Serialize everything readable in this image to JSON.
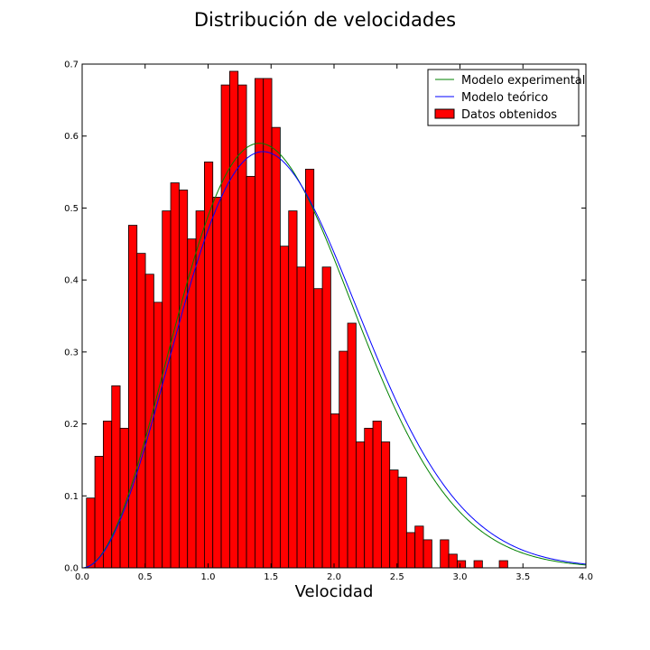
{
  "chart_data": {
    "type": "bar",
    "title": "Distribución de velocidades",
    "xlabel": "Velocidad",
    "ylabel": "",
    "xlim": [
      0.0,
      4.0
    ],
    "ylim": [
      0.0,
      0.7
    ],
    "xticks": [
      "0.0",
      "0.5",
      "1.0",
      "1.5",
      "2.0",
      "2.5",
      "3.0",
      "3.5",
      "4.0"
    ],
    "yticks": [
      "0.0",
      "0.1",
      "0.2",
      "0.3",
      "0.4",
      "0.5",
      "0.6",
      "0.7"
    ],
    "grid": false,
    "legend_position": "top-right",
    "histogram": {
      "name": "Datos obtenidos",
      "color": "#ff0000",
      "bin_start": 0.034,
      "bin_width": 0.0669,
      "values": [
        0.097,
        0.155,
        0.204,
        0.253,
        0.194,
        0.476,
        0.437,
        0.408,
        0.369,
        0.496,
        0.535,
        0.525,
        0.457,
        0.496,
        0.564,
        0.515,
        0.671,
        0.69,
        0.671,
        0.544,
        0.68,
        0.68,
        0.612,
        0.447,
        0.496,
        0.418,
        0.554,
        0.388,
        0.418,
        0.214,
        0.301,
        0.34,
        0.175,
        0.194,
        0.204,
        0.175,
        0.136,
        0.126,
        0.049,
        0.058,
        0.039,
        0.0,
        0.039,
        0.019,
        0.01,
        0.0,
        0.01,
        0.0,
        0.0,
        0.01
      ]
    },
    "series": [
      {
        "name": "Modelo experimental",
        "color": "#008000",
        "kind": "maxwell",
        "a": 0.995
      },
      {
        "name": "Modelo teórico",
        "color": "#0000ff",
        "kind": "maxwell",
        "a": 1.015
      }
    ]
  }
}
